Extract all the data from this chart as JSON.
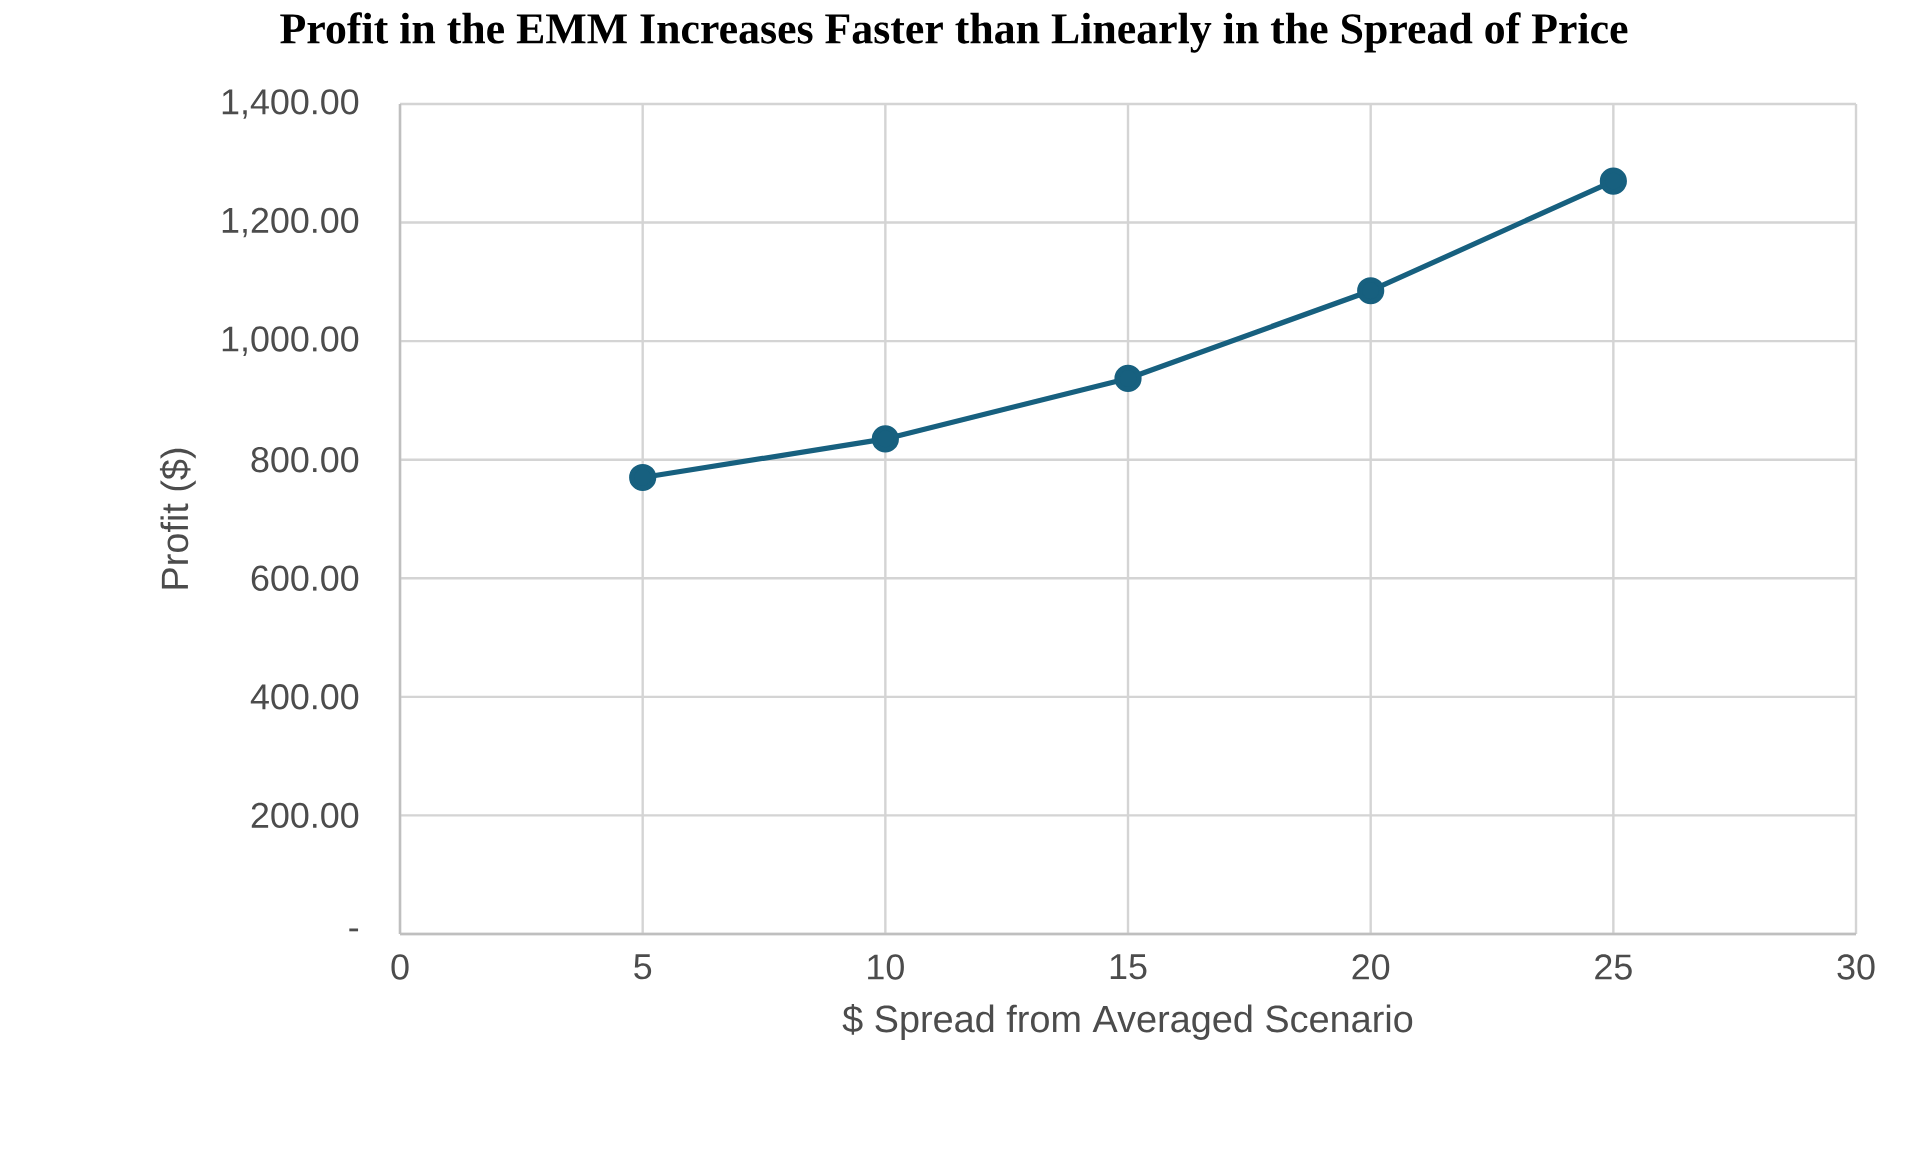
{
  "chart_data": {
    "type": "line",
    "title": "Profit in the EMM Increases Faster than Linearly in the Spread of Price",
    "xlabel": "$ Spread from Averaged Scenario",
    "ylabel": "Profit ($)",
    "x": [
      5,
      10,
      15,
      20,
      25
    ],
    "series": [
      {
        "color": "#17607f",
        "values": [
          770,
          835,
          937,
          1085,
          1270
        ]
      }
    ],
    "xlim": [
      0,
      30
    ],
    "xticks": [
      0,
      5,
      10,
      15,
      20,
      25,
      30
    ],
    "ylim": [
      0,
      1400
    ],
    "yticks": [
      {
        "value": 0,
        "label": "-"
      },
      {
        "value": 200,
        "label": "200.00"
      },
      {
        "value": 400,
        "label": "400.00"
      },
      {
        "value": 600,
        "label": "600.00"
      },
      {
        "value": 800,
        "label": "800.00"
      },
      {
        "value": 1000,
        "label": "1,000.00"
      },
      {
        "value": 1200,
        "label": "1,200.00"
      },
      {
        "value": 1400,
        "label": "1,400.00"
      }
    ],
    "grid": true,
    "marker": "circle",
    "line_style": "solid"
  }
}
